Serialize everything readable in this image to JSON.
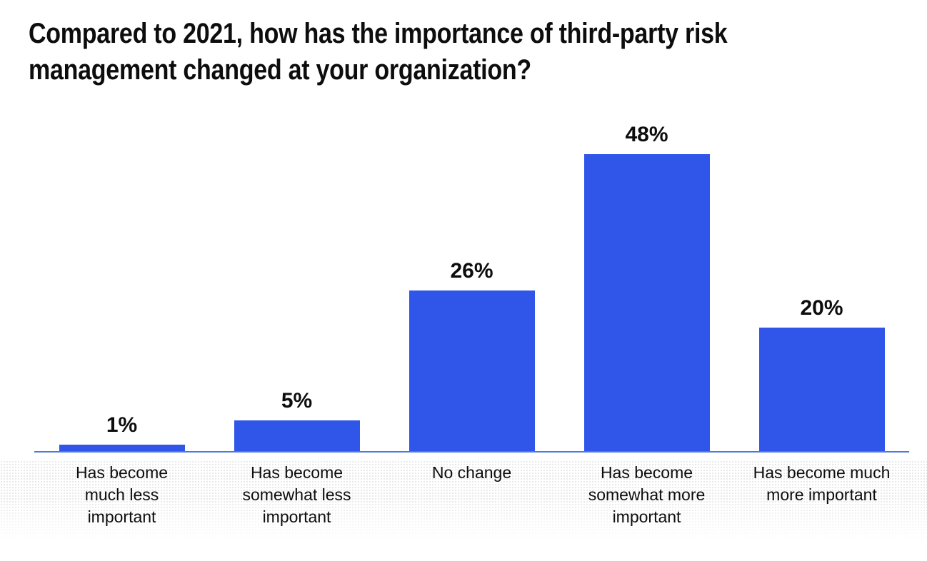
{
  "chart_data": {
    "type": "bar",
    "title": "Compared to 2021, how has the importance of third-party risk management changed at your organization?",
    "title_lines": [
      "Compared to 2021, how has the importance of third-party risk",
      "management changed at your organization?"
    ],
    "categories": [
      "Has become much less important",
      "Has become somewhat less important",
      "No change",
      "Has become somewhat more important",
      "Has become much more important"
    ],
    "category_lines": [
      [
        "Has become",
        "much less",
        "important"
      ],
      [
        "Has become",
        "somewhat less",
        "important"
      ],
      [
        "No change"
      ],
      [
        "Has become",
        "somewhat more",
        "important"
      ],
      [
        "Has become much",
        "more important"
      ]
    ],
    "values": [
      1,
      5,
      26,
      48,
      20
    ],
    "value_labels": [
      "1%",
      "5%",
      "26%",
      "48%",
      "20%"
    ],
    "unit": "%",
    "xlabel": "",
    "ylabel": "",
    "ylim": [
      0,
      48
    ],
    "grid": false,
    "legend": "none",
    "value_label_position": "above-bar",
    "colors": {
      "bar": "#2F55E9",
      "axis_line": "#4C79DA",
      "text": "#0D0D0D",
      "background": "#FFFFFF"
    }
  }
}
